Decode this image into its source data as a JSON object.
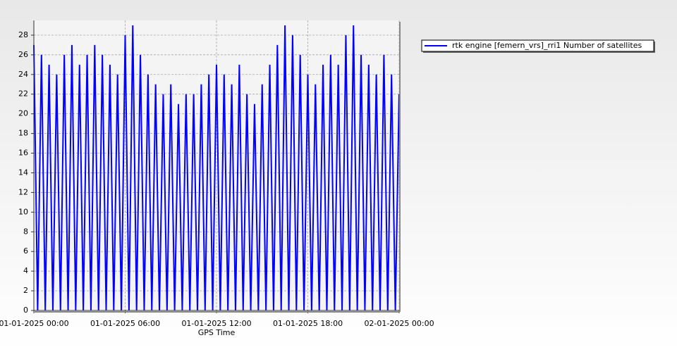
{
  "chart_data": {
    "type": "line",
    "x_label": "GPS Time",
    "x": [
      0,
      0.25,
      0.5,
      0.75,
      1,
      1.25,
      1.5,
      1.75,
      2,
      2.25,
      2.5,
      2.75,
      3,
      3.25,
      3.5,
      3.75,
      4,
      4.25,
      4.5,
      4.75,
      5,
      5.25,
      5.5,
      5.75,
      6,
      6.25,
      6.5,
      6.75,
      7,
      7.25,
      7.5,
      7.75,
      8,
      8.25,
      8.5,
      8.75,
      9,
      9.25,
      9.5,
      9.75,
      10,
      10.25,
      10.5,
      10.75,
      11,
      11.25,
      11.5,
      11.75,
      12,
      12.25,
      12.5,
      12.75,
      13,
      13.25,
      13.5,
      13.75,
      14,
      14.25,
      14.5,
      14.75,
      15,
      15.25,
      15.5,
      15.75,
      16,
      16.25,
      16.5,
      16.75,
      17,
      17.25,
      17.5,
      17.75,
      18,
      18.25,
      18.5,
      18.75,
      19,
      19.25,
      19.5,
      19.75,
      20,
      20.25,
      20.5,
      20.75,
      21,
      21.25,
      21.5,
      21.75,
      22,
      22.25,
      22.5,
      22.75,
      23,
      23.25,
      23.5,
      23.75,
      24
    ],
    "series": [
      {
        "name": "rtk engine [femern_vrs]_rri1 Number of satellites",
        "color": "#0000ff",
        "values": [
          27,
          0,
          26,
          0,
          25,
          0,
          24,
          0,
          26,
          0,
          27,
          0,
          25,
          0,
          26,
          0,
          27,
          0,
          26,
          0,
          25,
          0,
          24,
          0,
          28,
          0,
          29,
          0,
          26,
          0,
          24,
          0,
          23,
          0,
          22,
          0,
          23,
          0,
          21,
          0,
          22,
          0,
          22,
          0,
          23,
          0,
          24,
          0,
          25,
          0,
          24,
          0,
          23,
          0,
          25,
          0,
          22,
          0,
          21,
          0,
          23,
          0,
          25,
          0,
          27,
          0,
          29,
          0,
          28,
          0,
          26,
          0,
          24,
          0,
          23,
          0,
          25,
          0,
          26,
          0,
          25,
          0,
          28,
          0,
          29,
          0,
          26,
          0,
          25,
          0,
          24,
          0,
          26,
          0,
          24,
          0,
          22
        ]
      }
    ],
    "xlim": [
      0,
      24
    ],
    "xticks": [
      {
        "value": 0,
        "label": "01-01-2025 00:00"
      },
      {
        "value": 6,
        "label": "01-01-2025 06:00"
      },
      {
        "value": 12,
        "label": "01-01-2025 12:00"
      },
      {
        "value": 18,
        "label": "01-01-2025 18:00"
      },
      {
        "value": 24,
        "label": "02-01-2025 00:00"
      }
    ],
    "ylim": [
      0,
      29.5
    ],
    "yticks": [
      0,
      2,
      4,
      6,
      8,
      10,
      12,
      14,
      16,
      18,
      20,
      22,
      24,
      26,
      28
    ],
    "grid": true,
    "legend": "upper-right"
  }
}
